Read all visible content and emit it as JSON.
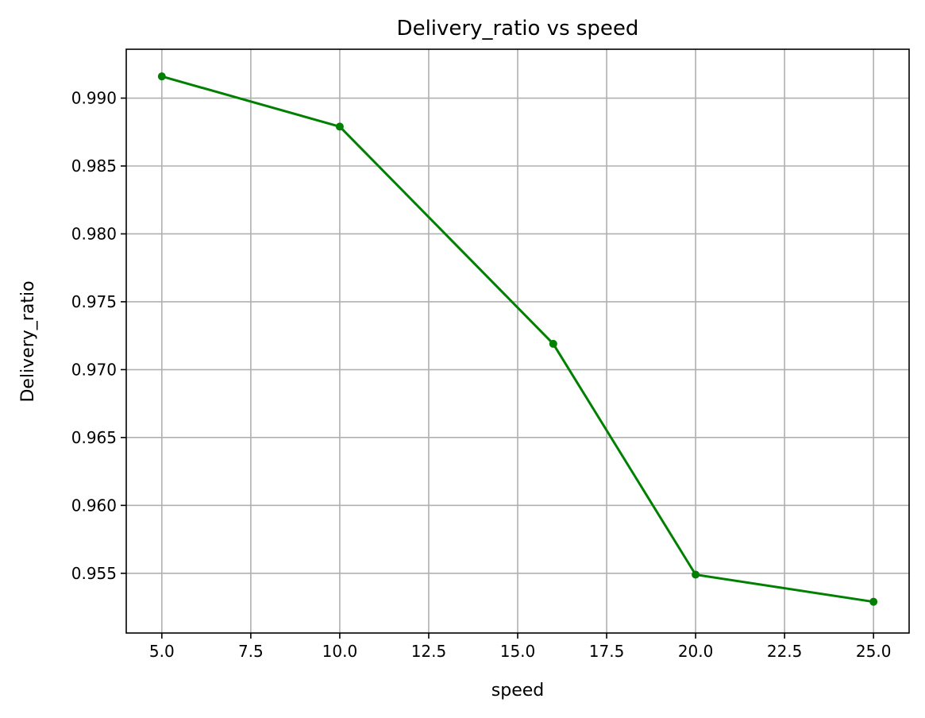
{
  "chart_data": {
    "type": "line",
    "title": "Delivery_ratio vs speed",
    "xlabel": "speed",
    "ylabel": "Delivery_ratio",
    "xlim": [
      4.0,
      26.0
    ],
    "ylim": [
      0.9506,
      0.9936
    ],
    "xticks": [
      5.0,
      7.5,
      10.0,
      12.5,
      15.0,
      17.5,
      20.0,
      22.5,
      25.0
    ],
    "xtick_labels": [
      "5.0",
      "7.5",
      "10.0",
      "12.5",
      "15.0",
      "17.5",
      "20.0",
      "22.5",
      "25.0"
    ],
    "yticks": [
      0.955,
      0.96,
      0.965,
      0.97,
      0.975,
      0.98,
      0.985,
      0.99
    ],
    "ytick_labels": [
      "0.955",
      "0.960",
      "0.965",
      "0.970",
      "0.975",
      "0.980",
      "0.985",
      "0.990"
    ],
    "grid": true,
    "series": [
      {
        "color": "#008000",
        "marker": "circle",
        "x": [
          5,
          10,
          16,
          20,
          25
        ],
        "y": [
          0.9916,
          0.9879,
          0.9719,
          0.9549,
          0.9529
        ]
      }
    ]
  }
}
